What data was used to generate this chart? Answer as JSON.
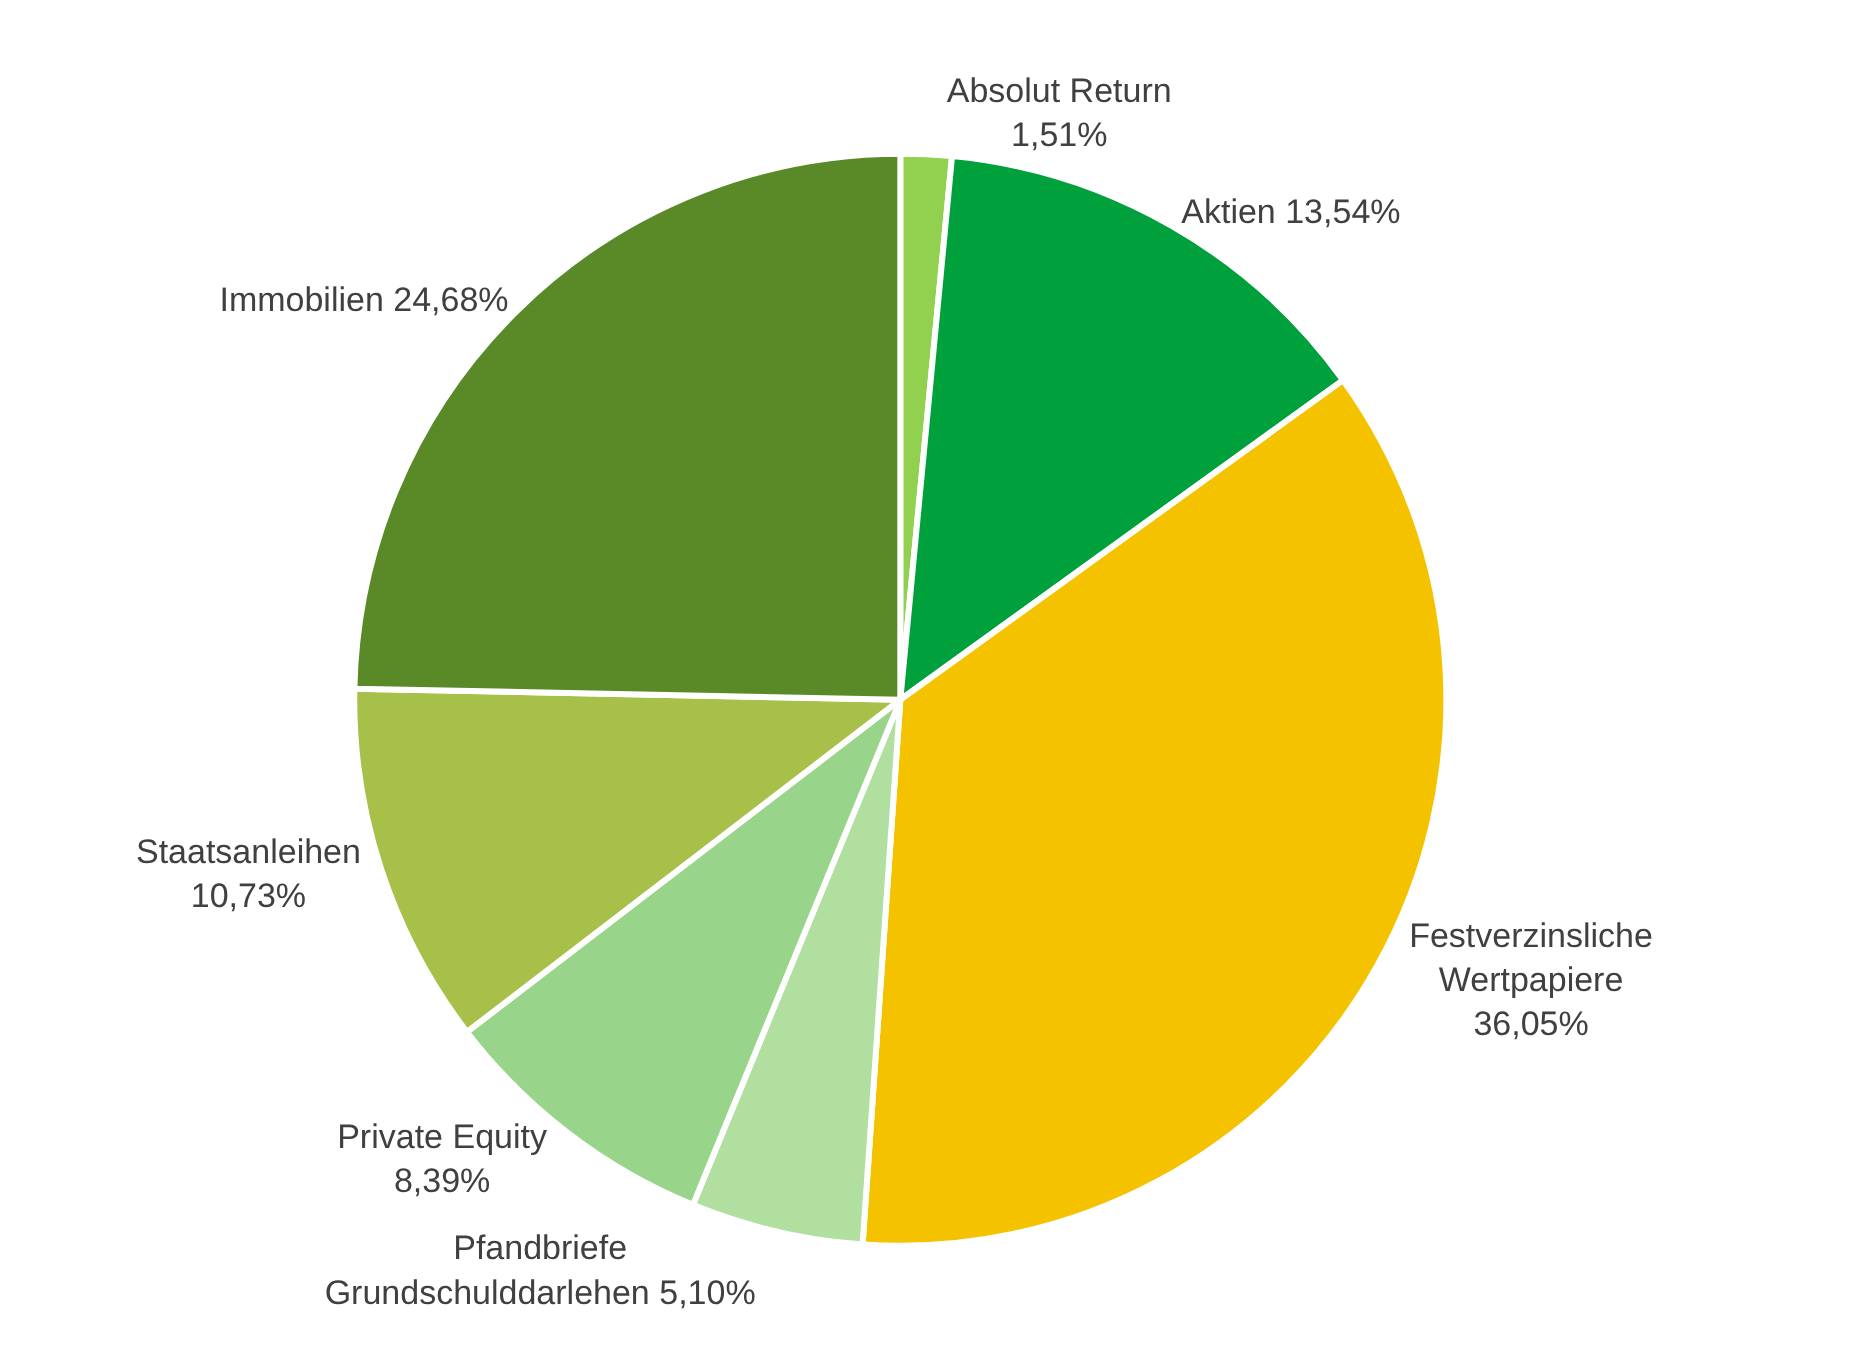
{
  "chart_data": {
    "type": "pie",
    "categories": [
      "Absolut Return",
      "Aktien",
      "Festverzinsliche Wertpapiere",
      "Pfandbriefe Grundschulddarlehen",
      "Private Equity",
      "Staatsanleihen",
      "Immobilien"
    ],
    "values": [
      1.51,
      13.54,
      36.05,
      5.1,
      8.39,
      10.73,
      24.68
    ],
    "value_labels": [
      "1,51%",
      "13,54%",
      "36,05%",
      "5,10%",
      "8,39%",
      "10,73%",
      "24,68%"
    ],
    "colors": [
      "#92d050",
      "#00a03c",
      "#f5c200",
      "#b0dfa0",
      "#98d48a",
      "#a6c04a",
      "#5a8a28"
    ],
    "legend": false
  }
}
